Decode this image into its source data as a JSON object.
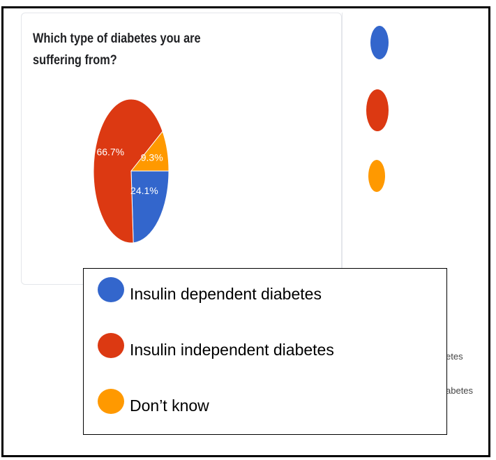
{
  "chart_data": {
    "type": "pie",
    "title": "Which type of diabetes you are suffering from?",
    "slices": [
      {
        "label": "Insulin dependent diabetes",
        "value": 24.1,
        "value_label": "24.1%",
        "color": "#3366cc"
      },
      {
        "label": "Insulin independent diabetes",
        "value": 66.7,
        "value_label": "66.7%",
        "color": "#dc3912"
      },
      {
        "label": "Don’t know",
        "value": 9.3,
        "value_label": "9.3%",
        "color": "#ff9900"
      }
    ],
    "legend": {
      "placement": "bottom-overlay",
      "entries": [
        "Insulin dependent diabetes",
        "Insulin independent diabetes",
        "Don’t know"
      ]
    }
  },
  "background_legend": {
    "clipped_labels": [
      "etes",
      "abetes"
    ]
  }
}
